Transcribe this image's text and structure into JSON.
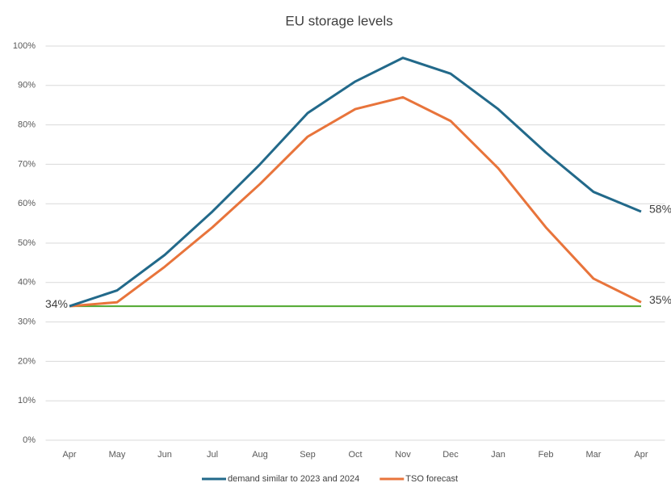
{
  "chart_data": {
    "type": "line",
    "title": "EU storage levels",
    "categories": [
      "Apr",
      "May",
      "Jun",
      "Jul",
      "Aug",
      "Sep",
      "Oct",
      "Nov",
      "Dec",
      "Jan",
      "Feb",
      "Mar",
      "Apr"
    ],
    "series": [
      {
        "name": "demand similar to 2023 and 2024",
        "color": "#22698a",
        "values": [
          34,
          38,
          47,
          58,
          70,
          83,
          91,
          97,
          93,
          84,
          73,
          63,
          58
        ],
        "value_labels": [
          null,
          null,
          null,
          null,
          null,
          null,
          null,
          null,
          null,
          null,
          null,
          null,
          "58%"
        ]
      },
      {
        "name": "TSO forecast",
        "color": "#e8743b",
        "values": [
          34,
          35,
          44,
          54,
          65,
          77,
          84,
          87,
          81,
          69,
          54,
          41,
          35
        ],
        "value_labels": [
          "34%",
          null,
          null,
          null,
          null,
          null,
          null,
          null,
          null,
          null,
          null,
          null,
          "35%"
        ]
      },
      {
        "color": "#4ea72e",
        "values": [
          34,
          34,
          34,
          34,
          34,
          34,
          34,
          34,
          34,
          34,
          34,
          34,
          34
        ]
      }
    ],
    "ylim": [
      0,
      100
    ],
    "yticks": [
      {
        "value": 0,
        "label": "0%"
      },
      {
        "value": 10,
        "label": "10%"
      },
      {
        "value": 20,
        "label": "20%"
      },
      {
        "value": 30,
        "label": "30%"
      },
      {
        "value": 40,
        "label": "40%"
      },
      {
        "value": 50,
        "label": "50%"
      },
      {
        "value": 60,
        "label": "60%"
      },
      {
        "value": 70,
        "label": "70%"
      },
      {
        "value": 80,
        "label": "80%"
      },
      {
        "value": 90,
        "label": "90%"
      },
      {
        "value": 100,
        "label": "100%"
      }
    ],
    "grid": true,
    "legend": "bottom"
  }
}
